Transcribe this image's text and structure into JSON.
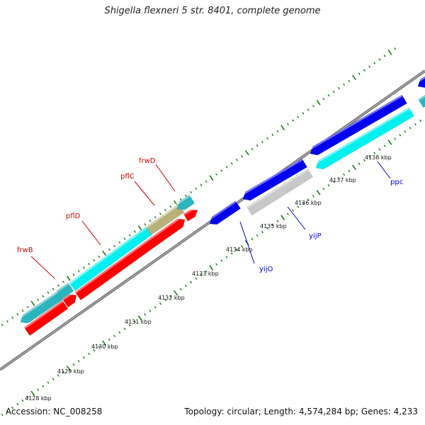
{
  "title": "Shigella flexneri 5 str. 8401, complete genome",
  "accession": "Accession: NC_008258",
  "summary": "Topology: circular; Length: 4,574,284 bp; Genes: 4,233",
  "colors": {
    "backbone": "#777777",
    "ticks": "#1a7a1a",
    "label_red": "#cc0000",
    "label_blue": "#0000cc",
    "cyan": "#00f0f0",
    "teal": "#2ab5bf",
    "olive": "#b8b27a",
    "red": "#ff0000",
    "blue": "#0000ee",
    "grey": "#c8c8c8"
  },
  "scale_labels": [
    "4128 kbp",
    "4129 kbp",
    "4130 kbp",
    "4131 kbp",
    "4132 kbp",
    "4133 kbp",
    "4134 kbp",
    "4135 kbp",
    "4136 kbp",
    "4137 kbp",
    "4138 kbp"
  ],
  "gene_labels": [
    {
      "text": "frwB",
      "color": "red"
    },
    {
      "text": "pflD",
      "color": "red"
    },
    {
      "text": "pflC",
      "color": "red"
    },
    {
      "text": "frwD",
      "color": "red"
    },
    {
      "text": "yijO",
      "color": "blue"
    },
    {
      "text": "yijP",
      "color": "blue"
    },
    {
      "text": "ppc",
      "color": "blue"
    }
  ]
}
